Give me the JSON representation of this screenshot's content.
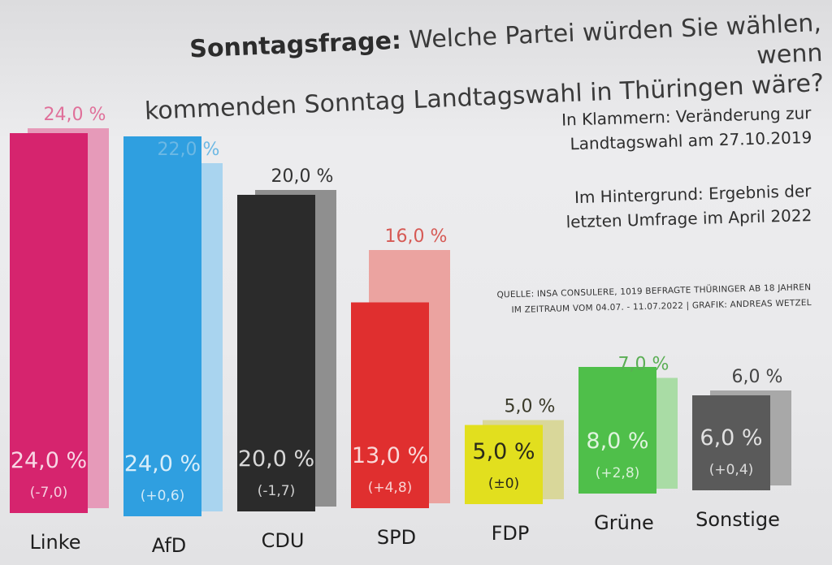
{
  "title": {
    "bold": "Sonntagsfrage:",
    "rest_line1": " Welche Partei würden Sie wählen, wenn",
    "line2": "kommenden Sonntag Landtagswahl in Thüringen wäre?"
  },
  "notes": {
    "change_line1": "In Klammern: Veränderung zur",
    "change_line2": "Landtagswahl am 27.10.2019",
    "background_line1": "Im Hintergrund: Ergebnis der",
    "background_line2": "letzten Umfrage im April 2022"
  },
  "source": {
    "line1": "QUELLE: INSA CONSULERE, 1019 BEFRAGTE THÜRINGER AB 18 JAHREN",
    "line2": "IM ZEITRAUM VOM 04.07. - 11.07.2022 | GRAFIK: ANDREAS WETZEL"
  },
  "chart_data": {
    "type": "bar",
    "categories": [
      "Linke",
      "AfD",
      "CDU",
      "SPD",
      "FDP",
      "Grüne",
      "Sonstige"
    ],
    "series": [
      {
        "values": [
          24.0,
          24.0,
          20.0,
          13.0,
          5.0,
          8.0,
          6.0
        ],
        "labels": [
          "24,0 %",
          "24,0 %",
          "20,0 %",
          "13,0 %",
          "5,0 %",
          "8,0 %",
          "6,0 %"
        ],
        "changes": [
          "(-7,0)",
          "(+0,6)",
          "(-1,7)",
          "(+4,8)",
          "(±0)",
          "(+2,8)",
          "(+0,4)"
        ]
      },
      {
        "values": [
          24.0,
          22.0,
          20.0,
          16.0,
          5.0,
          7.0,
          6.0
        ],
        "labels": [
          "24,0 %",
          "22,0 %",
          "20,0 %",
          "16,0 %",
          "5,0 %",
          "7,0 %",
          "6,0 %"
        ]
      }
    ],
    "colors": [
      "#d6246e",
      "#2f9fe0",
      "#2b2b2b",
      "#e02f2f",
      "#e2df1e",
      "#4fbf4a",
      "#5a5a5a"
    ],
    "background_colors": [
      "#e69ab9",
      "#a9d4ef",
      "#8f8f8f",
      "#eba3a0",
      "#d9d79a",
      "#a9dca5",
      "#a8a8a8"
    ],
    "label_colors": [
      "#e0709a",
      "#6cb8e4",
      "#333333",
      "#d65a55",
      "#3a3a2a",
      "#5aae54",
      "#444444"
    ],
    "ylim": [
      0,
      26
    ],
    "legend": "none",
    "grid": false
  }
}
